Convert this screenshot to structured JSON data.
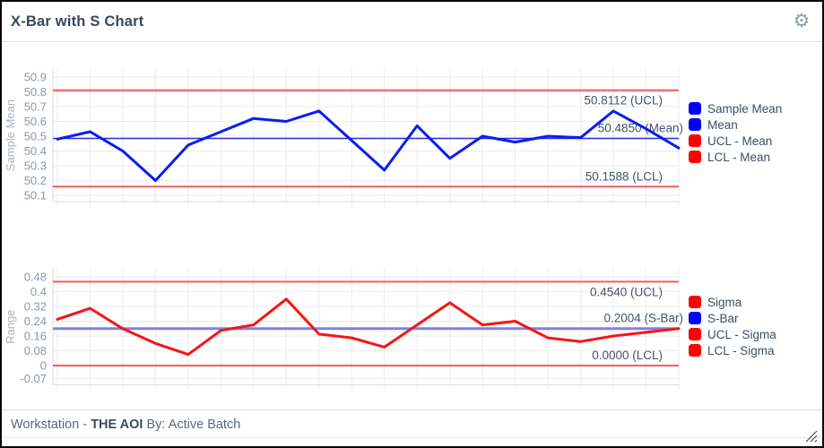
{
  "window": {
    "title": "X-Bar with S Chart",
    "settings_icon": "⚙",
    "footer": {
      "prefix": "Workstation - ",
      "workstation_name": "THE AOI",
      "suffix": " By: Active Batch"
    }
  },
  "colors": {
    "series_blue": "#0b1df2",
    "mean_line_blue": "#2929d6",
    "sbar_line_blue": "#7e7ef0",
    "series_red": "#f81414",
    "limit_red": "#f55c5c",
    "legend_blue": "#0000fe",
    "legend_red": "#fe0000",
    "tick_text": "#8b95a9",
    "axis_label": "#aab1c2",
    "annotation_text": "#44546a",
    "grid": "#ebebee",
    "axis": "#d8dbe2"
  },
  "chart_data": [
    {
      "type": "line",
      "name": "xbar",
      "ylabel": "Sample Mean",
      "yticks": [
        {
          "v": 50.9,
          "label": "50.9"
        },
        {
          "v": 50.8,
          "label": "50.8"
        },
        {
          "v": 50.7,
          "label": "50.7"
        },
        {
          "v": 50.6,
          "label": "50.6"
        },
        {
          "v": 50.5,
          "label": "50.5"
        },
        {
          "v": 50.4,
          "label": "50.4"
        },
        {
          "v": 50.3,
          "label": "50.3"
        },
        {
          "v": 50.2,
          "label": "50.2"
        },
        {
          "v": 50.1,
          "label": "50.1"
        }
      ],
      "ylim": [
        50.06,
        50.95
      ],
      "grid": true,
      "legend_position": "right",
      "series": [
        {
          "name": "Sample Mean",
          "color": "#0b1df2",
          "width": 3,
          "values": [
            50.48,
            50.53,
            50.4,
            50.2,
            50.44,
            50.53,
            50.62,
            50.6,
            50.67,
            50.47,
            50.27,
            50.57,
            50.35,
            50.5,
            50.46,
            50.5,
            50.49,
            50.67,
            50.55,
            50.42
          ]
        }
      ],
      "control_lines": [
        {
          "name": "Mean",
          "value": 50.485,
          "color": "#2929d6",
          "width": 1.5
        },
        {
          "name": "UCL - Mean",
          "value": 50.8112,
          "color": "#f55c5c",
          "width": 2
        },
        {
          "name": "LCL - Mean",
          "value": 50.1588,
          "color": "#f55c5c",
          "width": 2
        }
      ],
      "annotations": [
        {
          "text": "50.8112 (UCL)",
          "value": 50.8112
        },
        {
          "text": "50.4850 (Mean)",
          "value": 50.485
        },
        {
          "text": "50.1588 (LCL)",
          "value": 50.1588
        }
      ],
      "legend": [
        {
          "label": "Sample Mean",
          "color": "#0000fe"
        },
        {
          "label": "Mean",
          "color": "#0000fe"
        },
        {
          "label": "UCL - Mean",
          "color": "#fe0000"
        },
        {
          "label": "LCL - Mean",
          "color": "#fe0000"
        }
      ]
    },
    {
      "type": "line",
      "name": "s",
      "ylabel": "Range",
      "yticks": [
        {
          "v": 0.48,
          "label": "0.48"
        },
        {
          "v": 0.4,
          "label": "0.4"
        },
        {
          "v": 0.32,
          "label": "0.32"
        },
        {
          "v": 0.24,
          "label": "0.24"
        },
        {
          "v": 0.16,
          "label": "0.16"
        },
        {
          "v": 0.08,
          "label": "0.08"
        },
        {
          "v": 0,
          "label": "0"
        },
        {
          "v": -0.07,
          "label": "-0.07"
        }
      ],
      "ylim": [
        -0.1,
        0.52
      ],
      "grid": true,
      "legend_position": "right",
      "series": [
        {
          "name": "Sigma",
          "color": "#f81414",
          "width": 3,
          "values": [
            0.25,
            0.31,
            0.2,
            0.12,
            0.06,
            0.19,
            0.22,
            0.36,
            0.17,
            0.15,
            0.1,
            0.22,
            0.34,
            0.22,
            0.24,
            0.15,
            0.13,
            0.16,
            0.18,
            0.2
          ]
        }
      ],
      "control_lines": [
        {
          "name": "S-Bar",
          "value": 0.2004,
          "color": "#7e7ef0",
          "width": 3
        },
        {
          "name": "UCL - Sigma",
          "value": 0.454,
          "color": "#f55c5c",
          "width": 2
        },
        {
          "name": "LCL - Sigma",
          "value": 0.0,
          "color": "#f55c5c",
          "width": 2
        }
      ],
      "annotations": [
        {
          "text": "0.4540 (UCL)",
          "value": 0.454
        },
        {
          "text": "0.2004 (S-Bar)",
          "value": 0.2004
        },
        {
          "text": "0.0000 (LCL)",
          "value": 0.0
        }
      ],
      "legend": [
        {
          "label": "Sigma",
          "color": "#fe0000"
        },
        {
          "label": "S-Bar",
          "color": "#0000fe"
        },
        {
          "label": "UCL - Sigma",
          "color": "#fe0000"
        },
        {
          "label": "LCL - Sigma",
          "color": "#fe0000"
        }
      ]
    }
  ]
}
